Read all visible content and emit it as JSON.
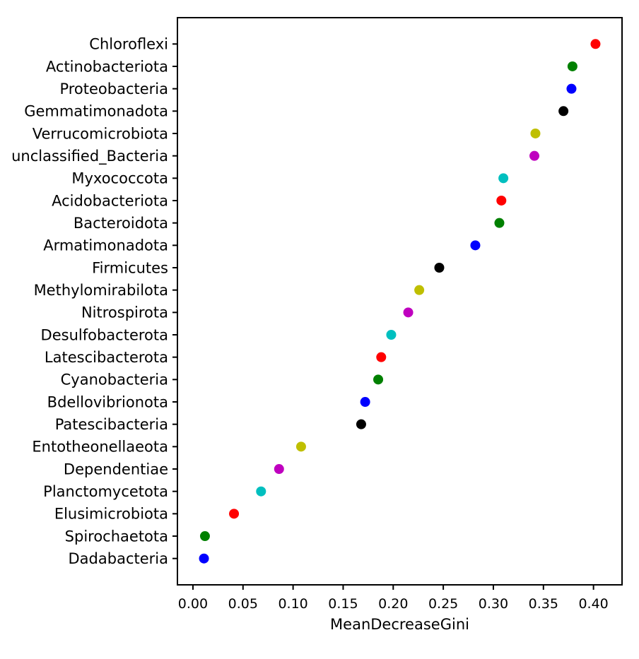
{
  "chart_data": {
    "type": "scatter",
    "subtype": "horizontal-dot-importance-plot",
    "title": "",
    "xlabel": "MeanDecreaseGini",
    "ylabel": "",
    "xlim": [
      -0.0155,
      0.4285
    ],
    "grid": false,
    "legend": "none",
    "xticks": {
      "values": [
        0.0,
        0.05,
        0.1,
        0.15,
        0.2,
        0.25,
        0.3,
        0.35,
        0.4
      ],
      "labels": [
        "0.00",
        "0.05",
        "0.10",
        "0.15",
        "0.20",
        "0.25",
        "0.30",
        "0.35",
        "0.40"
      ]
    },
    "categories": [
      "Chloroflexi",
      "Actinobacteriota",
      "Proteobacteria",
      "Gemmatimonadota",
      "Verrucomicrobiota",
      "unclassified_Bacteria",
      "Myxococcota",
      "Acidobacteriota",
      "Bacteroidota",
      "Armatimonadota",
      "Firmicutes",
      "Methylomirabilota",
      "Nitrospirota",
      "Desulfobacterota",
      "Latescibacterota",
      "Cyanobacteria",
      "Bdellovibrionota",
      "Patescibacteria",
      "Entotheonellaeota",
      "Dependentiae",
      "Planctomycetota",
      "Elusimicrobiota",
      "Spirochaetota",
      "Dadabacteria"
    ],
    "values": [
      0.402,
      0.379,
      0.378,
      0.37,
      0.342,
      0.341,
      0.31,
      0.308,
      0.306,
      0.282,
      0.246,
      0.226,
      0.215,
      0.198,
      0.188,
      0.185,
      0.172,
      0.168,
      0.108,
      0.086,
      0.068,
      0.041,
      0.012,
      0.011
    ],
    "point_colors": [
      "#ff0000",
      "#008000",
      "#0000ff",
      "#000000",
      "#bfbf00",
      "#bf00bf",
      "#00bfbf",
      "#ff0000",
      "#008000",
      "#0000ff",
      "#000000",
      "#bfbf00",
      "#bf00bf",
      "#00bfbf",
      "#ff0000",
      "#008000",
      "#0000ff",
      "#000000",
      "#bfbf00",
      "#bf00bf",
      "#00bfbf",
      "#ff0000",
      "#008000",
      "#0000ff"
    ],
    "spine_color": "#000000"
  }
}
